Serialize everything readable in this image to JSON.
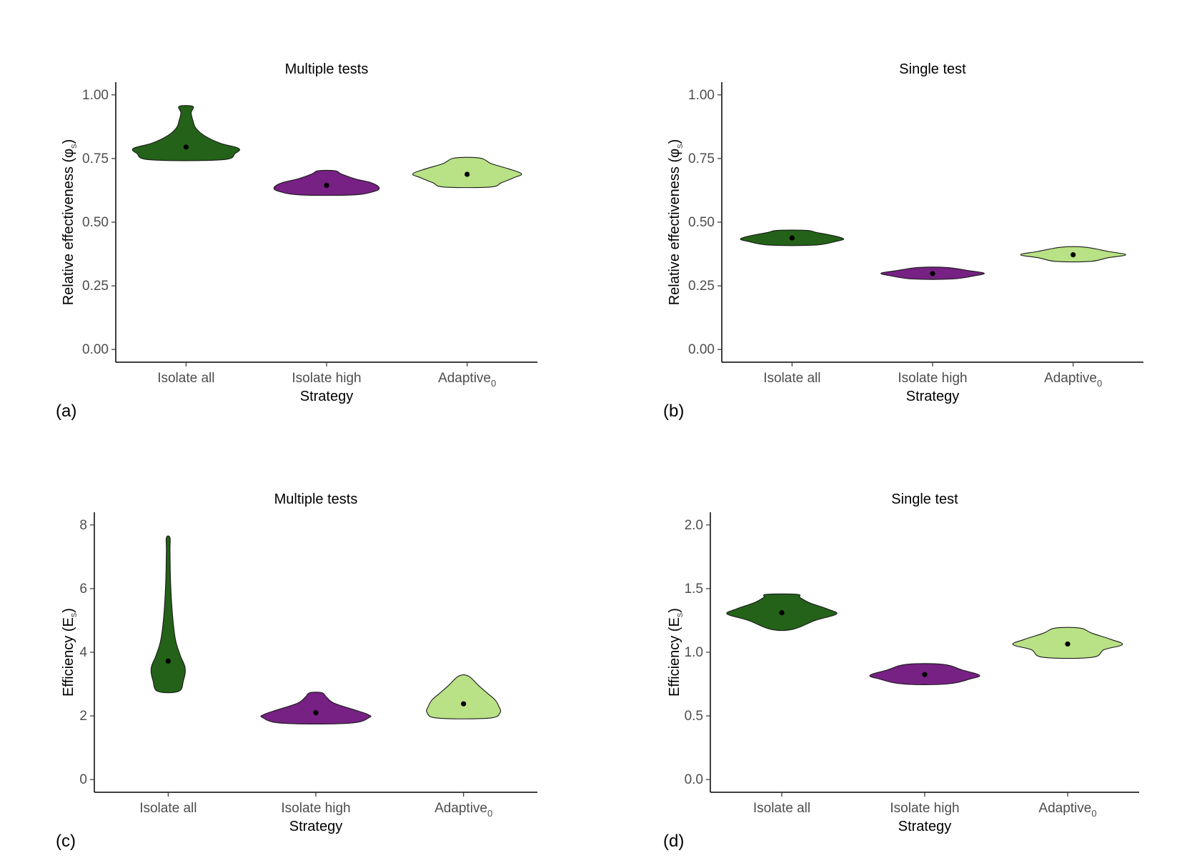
{
  "colors": {
    "isolate_all": "#236218",
    "isolate_high": "#762183",
    "adaptive": "#b8e285",
    "outline": "#1a1a1a",
    "point": "#000000"
  },
  "chart_data": [
    {
      "panel": "(a)",
      "type": "violin",
      "title": "Multiple tests",
      "xlabel": "Strategy",
      "ylabel_main": "Relative effectiveness (φ",
      "ylabel_sub": "s",
      "ylabel_close": ")",
      "ylim": [
        -0.05,
        1.05
      ],
      "yticks": [
        0.0,
        0.25,
        0.5,
        0.75,
        1.0
      ],
      "ytick_labels": [
        "0.00",
        "0.25",
        "0.50",
        "0.75",
        "1.00"
      ],
      "categories": [
        {
          "label": "Isolate all",
          "sub": ""
        },
        {
          "label": "Isolate high",
          "sub": ""
        },
        {
          "label": "Adaptive",
          "sub": "0"
        }
      ],
      "series": [
        {
          "name": "Isolate all",
          "mean": 0.795,
          "min": 0.745,
          "max": 0.955,
          "profile": [
            [
              0.745,
              0.62
            ],
            [
              0.77,
              0.86
            ],
            [
              0.79,
              0.92
            ],
            [
              0.81,
              0.6
            ],
            [
              0.84,
              0.32
            ],
            [
              0.87,
              0.17
            ],
            [
              0.9,
              0.12
            ],
            [
              0.93,
              0.09
            ],
            [
              0.955,
              0.12
            ]
          ]
        },
        {
          "name": "Isolate high",
          "mean": 0.645,
          "min": 0.607,
          "max": 0.702,
          "profile": [
            [
              0.607,
              0.45
            ],
            [
              0.62,
              0.82
            ],
            [
              0.635,
              0.92
            ],
            [
              0.655,
              0.78
            ],
            [
              0.67,
              0.5
            ],
            [
              0.69,
              0.25
            ],
            [
              0.702,
              0.15
            ]
          ]
        },
        {
          "name": "Adaptive",
          "mean": 0.688,
          "min": 0.638,
          "max": 0.752,
          "profile": [
            [
              0.638,
              0.4
            ],
            [
              0.655,
              0.6
            ],
            [
              0.675,
              0.82
            ],
            [
              0.69,
              0.95
            ],
            [
              0.71,
              0.72
            ],
            [
              0.73,
              0.42
            ],
            [
              0.752,
              0.22
            ]
          ]
        }
      ]
    },
    {
      "panel": "(b)",
      "type": "violin",
      "title": "Single test",
      "xlabel": "Strategy",
      "ylabel_main": "Relative effectiveness (φ",
      "ylabel_sub": "s",
      "ylabel_close": ")",
      "ylim": [
        -0.05,
        1.05
      ],
      "yticks": [
        0.0,
        0.25,
        0.5,
        0.75,
        1.0
      ],
      "ytick_labels": [
        "0.00",
        "0.25",
        "0.50",
        "0.75",
        "1.00"
      ],
      "categories": [
        {
          "label": "Isolate all",
          "sub": ""
        },
        {
          "label": "Isolate high",
          "sub": ""
        },
        {
          "label": "Adaptive",
          "sub": "0"
        }
      ],
      "series": [
        {
          "name": "Isolate all",
          "mean": 0.438,
          "min": 0.41,
          "max": 0.468,
          "profile": [
            [
              0.41,
              0.4
            ],
            [
              0.425,
              0.78
            ],
            [
              0.435,
              0.9
            ],
            [
              0.448,
              0.7
            ],
            [
              0.46,
              0.42
            ],
            [
              0.468,
              0.25
            ]
          ]
        },
        {
          "name": "Isolate high",
          "mean": 0.298,
          "min": 0.277,
          "max": 0.322,
          "profile": [
            [
              0.277,
              0.35
            ],
            [
              0.29,
              0.75
            ],
            [
              0.3,
              0.9
            ],
            [
              0.31,
              0.62
            ],
            [
              0.322,
              0.25
            ]
          ]
        },
        {
          "name": "Adaptive",
          "mean": 0.372,
          "min": 0.346,
          "max": 0.402,
          "profile": [
            [
              0.346,
              0.3
            ],
            [
              0.36,
              0.6
            ],
            [
              0.372,
              0.92
            ],
            [
              0.385,
              0.62
            ],
            [
              0.402,
              0.2
            ]
          ]
        }
      ]
    },
    {
      "panel": "(c)",
      "type": "violin",
      "title": "Multiple tests",
      "xlabel": "Strategy",
      "ylabel_main": "Efficiency (E",
      "ylabel_sub": "s",
      "ylabel_close": ")",
      "ylim": [
        -0.4,
        8.4
      ],
      "yticks": [
        0,
        2,
        4,
        6,
        8
      ],
      "ytick_labels": [
        "0",
        "2",
        "4",
        "6",
        "8"
      ],
      "categories": [
        {
          "label": "Isolate all",
          "sub": ""
        },
        {
          "label": "Isolate high",
          "sub": ""
        },
        {
          "label": "Adaptive",
          "sub": "0"
        }
      ],
      "series": [
        {
          "name": "Isolate all",
          "mean": 3.72,
          "min": 2.77,
          "max": 7.6,
          "profile": [
            [
              2.77,
              0.17
            ],
            [
              3.1,
              0.25
            ],
            [
              3.5,
              0.28
            ],
            [
              3.9,
              0.2
            ],
            [
              4.4,
              0.12
            ],
            [
              5.2,
              0.07
            ],
            [
              6.2,
              0.04
            ],
            [
              7.2,
              0.03
            ],
            [
              7.6,
              0.03
            ]
          ]
        },
        {
          "name": "Isolate high",
          "mean": 2.1,
          "min": 1.77,
          "max": 2.73,
          "profile": [
            [
              1.77,
              0.55
            ],
            [
              1.95,
              0.88
            ],
            [
              2.05,
              0.85
            ],
            [
              2.2,
              0.62
            ],
            [
              2.4,
              0.3
            ],
            [
              2.6,
              0.17
            ],
            [
              2.73,
              0.1
            ]
          ]
        },
        {
          "name": "Adaptive",
          "mean": 2.38,
          "min": 1.93,
          "max": 3.25,
          "profile": [
            [
              1.93,
              0.42
            ],
            [
              2.1,
              0.6
            ],
            [
              2.3,
              0.58
            ],
            [
              2.5,
              0.52
            ],
            [
              2.7,
              0.4
            ],
            [
              2.95,
              0.25
            ],
            [
              3.25,
              0.08
            ]
          ]
        }
      ]
    },
    {
      "panel": "(d)",
      "type": "violin",
      "title": "Single test",
      "xlabel": "Strategy",
      "ylabel_main": "Efficiency (E",
      "ylabel_sub": "s",
      "ylabel_close": ")",
      "ylim": [
        -0.1,
        2.1
      ],
      "yticks": [
        0.0,
        0.5,
        1.0,
        1.5,
        2.0
      ],
      "ytick_labels": [
        "0.0",
        "0.5",
        "1.0",
        "1.5",
        "2.0"
      ],
      "categories": [
        {
          "label": "Isolate all",
          "sub": ""
        },
        {
          "label": "Isolate high",
          "sub": ""
        },
        {
          "label": "Adaptive",
          "sub": "0"
        }
      ],
      "series": [
        {
          "name": "Isolate all",
          "mean": 1.31,
          "min": 1.18,
          "max": 1.455,
          "profile": [
            [
              1.18,
              0.18
            ],
            [
              1.25,
              0.55
            ],
            [
              1.3,
              0.9
            ],
            [
              1.34,
              0.75
            ],
            [
              1.39,
              0.45
            ],
            [
              1.43,
              0.3
            ],
            [
              1.455,
              0.25
            ]
          ]
        },
        {
          "name": "Isolate high",
          "mean": 0.825,
          "min": 0.75,
          "max": 0.905,
          "profile": [
            [
              0.75,
              0.35
            ],
            [
              0.79,
              0.75
            ],
            [
              0.82,
              0.9
            ],
            [
              0.86,
              0.62
            ],
            [
              0.905,
              0.3
            ]
          ]
        },
        {
          "name": "Adaptive",
          "mean": 1.065,
          "min": 0.96,
          "max": 1.19,
          "profile": [
            [
              0.96,
              0.4
            ],
            [
              1.02,
              0.6
            ],
            [
              1.06,
              0.9
            ],
            [
              1.1,
              0.72
            ],
            [
              1.15,
              0.4
            ],
            [
              1.19,
              0.2
            ]
          ]
        }
      ]
    }
  ]
}
